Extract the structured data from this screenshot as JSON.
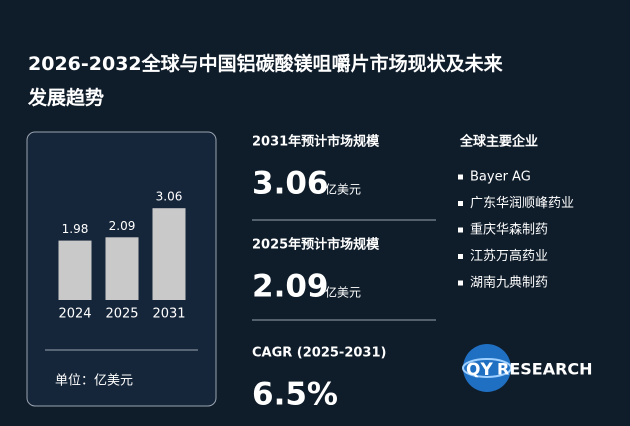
{
  "title": "2026-2032全球与中国铝碳酸镁咀嚼片市场现状及未来发展趋势",
  "chart_data": {
    "type": "bar",
    "categories": [
      "2024",
      "2025",
      "2031"
    ],
    "values": [
      1.98,
      2.09,
      3.06
    ],
    "color": "#c9c9c9",
    "unit_label": "单位：亿美元"
  },
  "stats": [
    {
      "label": "2031年预计市场规模",
      "value": "3.06",
      "unit": "亿美元"
    },
    {
      "label": "2025年预计市场规模",
      "value": "2.09",
      "unit": "亿美元"
    },
    {
      "label": "CAGR (2025-2031)",
      "value": "6.5%"
    }
  ],
  "companies": {
    "title": "全球主要企业",
    "items": [
      "Bayer AG",
      "广东华润顺峰药业",
      "重庆华森制药",
      "江苏万高药业",
      "湖南九典制药"
    ]
  },
  "logo": {
    "prefix": "QY",
    "suffix": "RESEARCH"
  }
}
